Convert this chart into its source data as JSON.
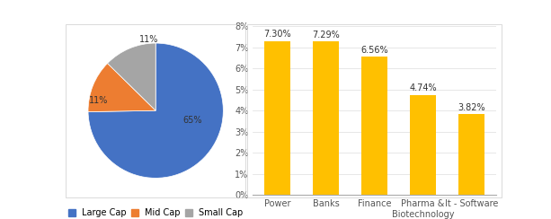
{
  "pie_labels": [
    "Large Cap",
    "Mid Cap",
    "Small Cap"
  ],
  "pie_values": [
    65,
    11,
    11
  ],
  "pie_colors": [
    "#4472C4",
    "#ED7D31",
    "#A5A5A5"
  ],
  "pie_label_texts": [
    "65%",
    "11%",
    "11%"
  ],
  "bar_categories": [
    "Power",
    "Banks",
    "Finance",
    "Pharma &\nBiotechnology",
    "It - Software"
  ],
  "bar_values": [
    7.3,
    7.29,
    6.56,
    4.74,
    3.82
  ],
  "bar_value_labels": [
    "7.30%",
    "7.29%",
    "6.56%",
    "4.74%",
    "3.82%"
  ],
  "bar_color": "#FFC000",
  "bar_ylim": [
    0,
    8
  ],
  "bar_yticks": [
    0,
    1,
    2,
    3,
    4,
    5,
    6,
    7,
    8
  ],
  "bar_ytick_labels": [
    "0%",
    "1%",
    "2%",
    "3%",
    "4%",
    "5%",
    "6%",
    "7%",
    "8%"
  ],
  "legend_labels": [
    "Large Cap",
    "Mid Cap",
    "Small Cap"
  ],
  "legend_colors": [
    "#4472C4",
    "#ED7D31",
    "#A5A5A5"
  ],
  "background_color": "#FFFFFF",
  "label_fontsize": 7,
  "tick_fontsize": 7,
  "legend_fontsize": 7,
  "bar_value_fontsize": 7
}
